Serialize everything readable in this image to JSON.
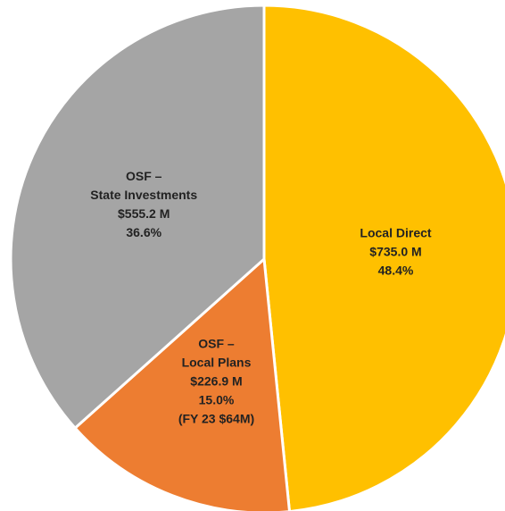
{
  "chart_data": {
    "type": "pie",
    "categories": [
      [
        "Local Direct"
      ],
      [
        "OSF –",
        "Local Plans"
      ],
      [
        "OSF –",
        "State Investments"
      ]
    ],
    "amounts": [
      735.0,
      226.9,
      555.2
    ],
    "amount_labels": [
      "$735.0 M",
      "$226.9 M",
      "$555.2 M"
    ],
    "values": [
      48.4,
      15.0,
      36.6
    ],
    "value_labels": [
      "48.4%",
      "15.0%",
      "36.6%"
    ],
    "notes": [
      null,
      "(FY 23 $64M)",
      null
    ],
    "colors": [
      "#FFC000",
      "#ED7D31",
      "#A5A5A5"
    ]
  }
}
